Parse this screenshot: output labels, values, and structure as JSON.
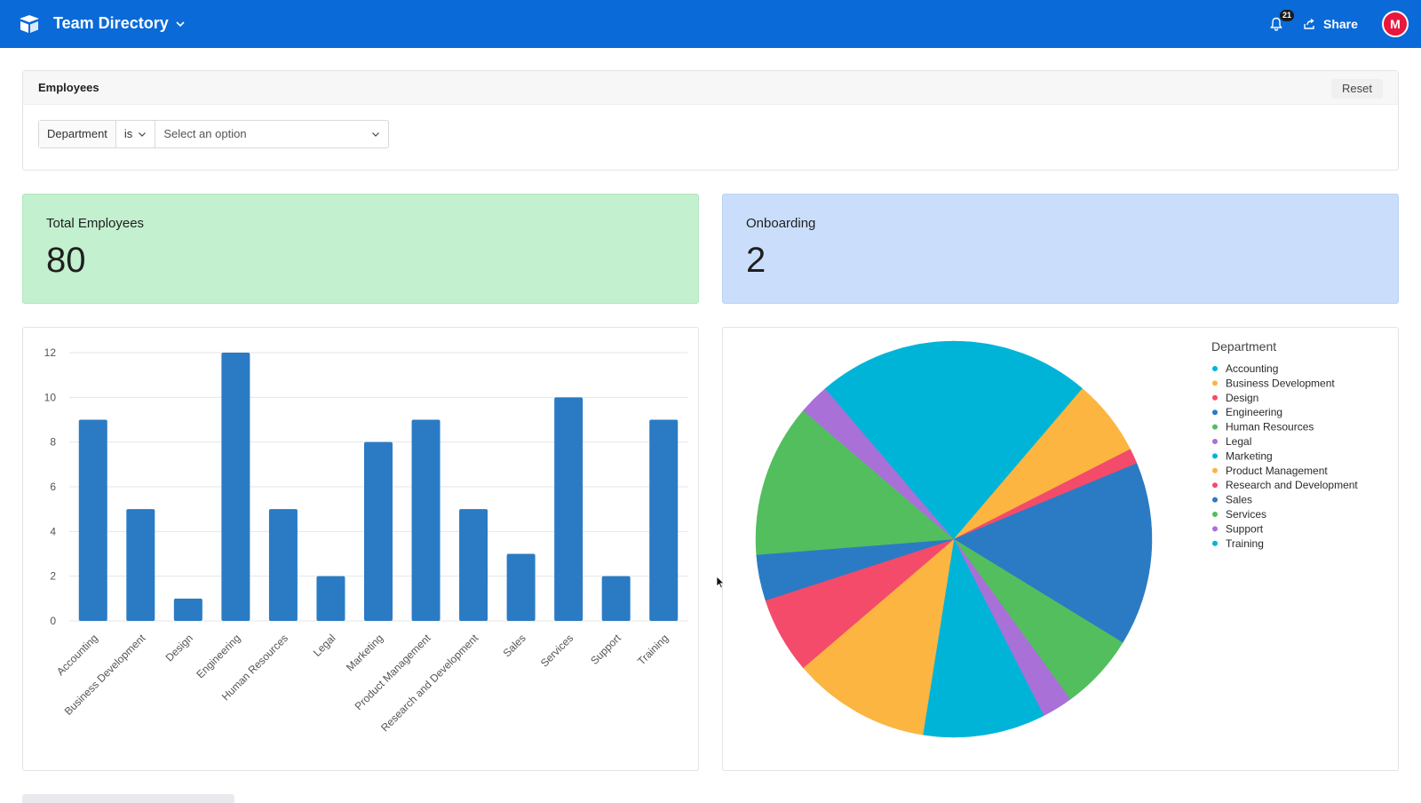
{
  "app": {
    "title": "Team Directory",
    "notification_count": "21",
    "share_label": "Share",
    "avatar_initial": "M",
    "brand_color": "#0a6ad8"
  },
  "filter": {
    "title": "Employees",
    "reset_label": "Reset",
    "field_label": "Department",
    "operator_label": "is",
    "value_placeholder": "Select an option"
  },
  "kpis": {
    "total_employees": {
      "label": "Total Employees",
      "value": "80",
      "color": "#c3f0cf"
    },
    "onboarding": {
      "label": "Onboarding",
      "value": "2",
      "color": "#cadefb"
    }
  },
  "chart_data": [
    {
      "type": "bar",
      "categories": [
        "Accounting",
        "Business Development",
        "Design",
        "Engineering",
        "Human Resources",
        "Legal",
        "Marketing",
        "Product Management",
        "Research and Development",
        "Sales",
        "Services",
        "Support",
        "Training"
      ],
      "values": [
        9,
        5,
        1,
        12,
        5,
        2,
        8,
        9,
        5,
        3,
        10,
        2,
        9
      ],
      "ylim": [
        0,
        12
      ],
      "yticks": [
        0,
        2,
        4,
        6,
        8,
        10,
        12
      ],
      "grid": true,
      "bar_color": "#2a7bc4"
    },
    {
      "type": "pie",
      "legend_title": "Department",
      "legend_position": "top-right",
      "labels": [
        "Accounting",
        "Business Development",
        "Design",
        "Engineering",
        "Human Resources",
        "Legal",
        "Marketing",
        "Product Management",
        "Research and Development",
        "Sales",
        "Services",
        "Support",
        "Training"
      ],
      "values": [
        9,
        5,
        1,
        12,
        5,
        2,
        8,
        9,
        5,
        3,
        10,
        2,
        9
      ],
      "colors": [
        "#00b4d8",
        "#fbb540",
        "#f44b6b",
        "#2a7bc4",
        "#52be5e",
        "#a970d8",
        "#00b4d8",
        "#fbb540",
        "#f44b6b",
        "#2a7bc4",
        "#52be5e",
        "#a970d8",
        "#00b4d8"
      ]
    }
  ]
}
